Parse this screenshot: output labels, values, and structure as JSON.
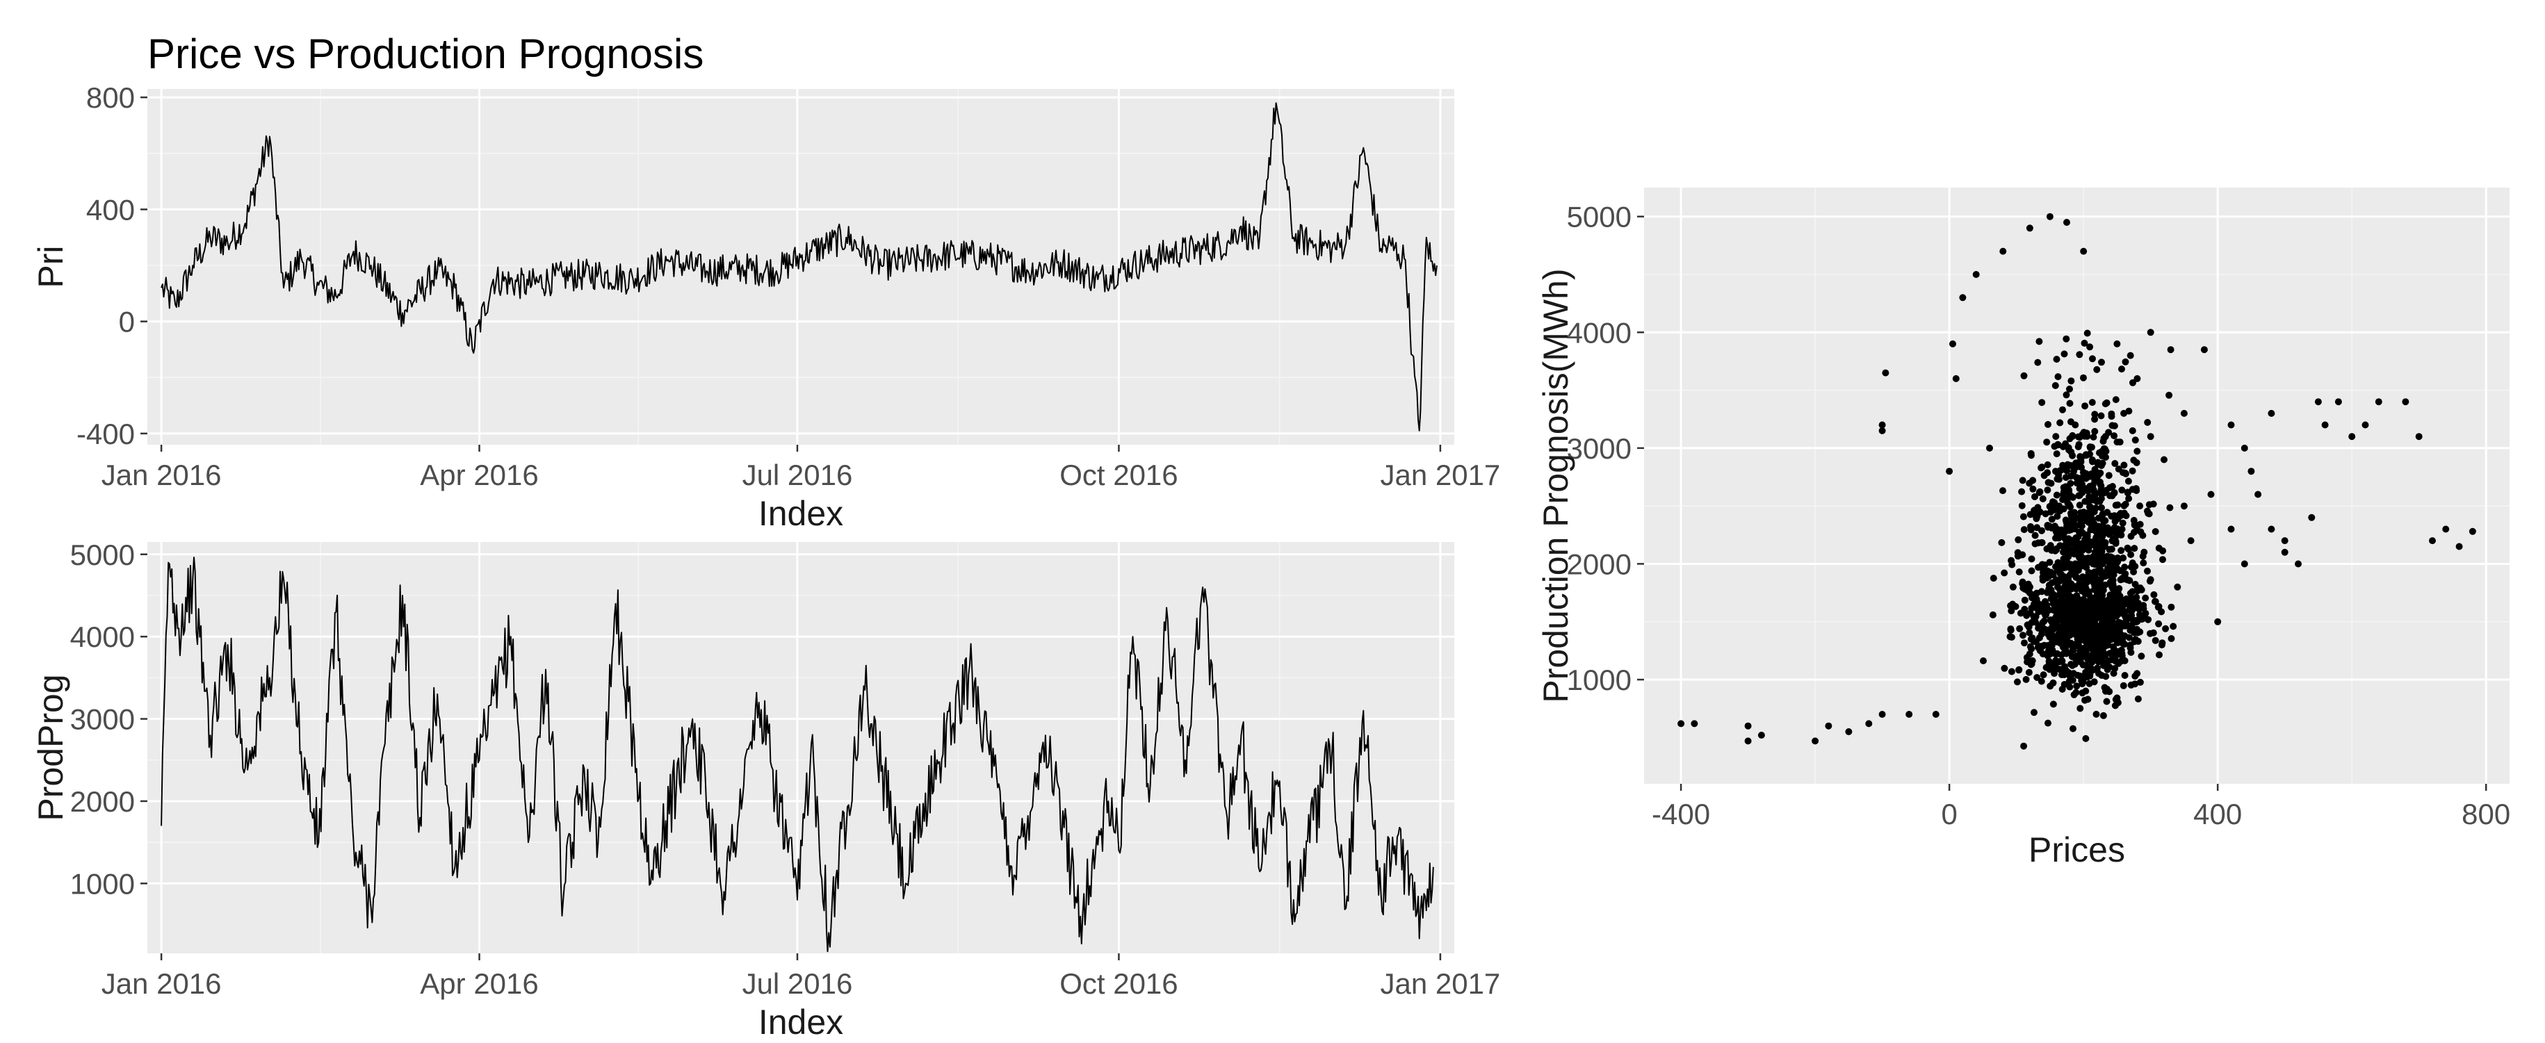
{
  "title": "Price vs Production Prognosis",
  "chart_data": [
    {
      "type": "line",
      "title": "Price vs Production Prognosis",
      "xlabel": "Index",
      "ylabel": "Pri",
      "x_ticks": [
        "Jan 2016",
        "Apr 2016",
        "Jul 2016",
        "Oct 2016",
        "Jan 2017"
      ],
      "y_ticks": [
        "-400",
        "0",
        "400",
        "800"
      ],
      "xlim": [
        "2015-12-28",
        "2017-01-05"
      ],
      "ylim": [
        -440,
        830
      ],
      "grid": true,
      "color": "#000000",
      "x": [
        "2016-01-01",
        "2016-01-05",
        "2016-01-10",
        "2016-01-15",
        "2016-01-20",
        "2016-01-25",
        "2016-02-01",
        "2016-02-05",
        "2016-02-10",
        "2016-02-15",
        "2016-02-20",
        "2016-02-25",
        "2016-03-01",
        "2016-03-10",
        "2016-03-20",
        "2016-03-25",
        "2016-03-30",
        "2016-04-05",
        "2016-04-15",
        "2016-04-25",
        "2016-05-05",
        "2016-05-15",
        "2016-05-25",
        "2016-06-05",
        "2016-06-15",
        "2016-06-25",
        "2016-07-05",
        "2016-07-15",
        "2016-07-25",
        "2016-08-05",
        "2016-08-15",
        "2016-08-25",
        "2016-09-05",
        "2016-09-15",
        "2016-09-25",
        "2016-10-05",
        "2016-10-15",
        "2016-10-25",
        "2016-11-01",
        "2016-11-05",
        "2016-11-10",
        "2016-11-15",
        "2016-11-20",
        "2016-11-25",
        "2016-12-01",
        "2016-12-05",
        "2016-12-10",
        "2016-12-15",
        "2016-12-18",
        "2016-12-20",
        "2016-12-22",
        "2016-12-24",
        "2016-12-26",
        "2016-12-28",
        "2016-12-30",
        "2016-12-31"
      ],
      "values": [
        120,
        60,
        200,
        300,
        280,
        350,
        660,
        120,
        230,
        130,
        90,
        250,
        200,
        30,
        180,
        120,
        -100,
        150,
        130,
        160,
        170,
        150,
        220,
        180,
        190,
        180,
        250,
        300,
        200,
        220,
        240,
        230,
        180,
        210,
        150,
        200,
        240,
        260,
        280,
        340,
        260,
        780,
        300,
        280,
        260,
        280,
        620,
        260,
        270,
        240,
        220,
        -120,
        -390,
        300,
        180,
        200
      ]
    },
    {
      "type": "line",
      "xlabel": "Index",
      "ylabel": "ProdProg",
      "x_ticks": [
        "Jan 2016",
        "Apr 2016",
        "Jul 2016",
        "Oct 2016",
        "Jan 2017"
      ],
      "y_ticks": [
        "1000",
        "2000",
        "3000",
        "4000",
        "5000"
      ],
      "xlim": [
        "2015-12-28",
        "2017-01-05"
      ],
      "ylim": [
        150,
        5150
      ],
      "grid": true,
      "color": "#000000",
      "x": [
        "2016-01-01",
        "2016-01-03",
        "2016-01-06",
        "2016-01-10",
        "2016-01-15",
        "2016-01-20",
        "2016-01-25",
        "2016-02-01",
        "2016-02-05",
        "2016-02-10",
        "2016-02-15",
        "2016-02-20",
        "2016-02-25",
        "2016-03-01",
        "2016-03-05",
        "2016-03-10",
        "2016-03-15",
        "2016-03-20",
        "2016-03-25",
        "2016-04-01",
        "2016-04-10",
        "2016-04-15",
        "2016-04-20",
        "2016-04-25",
        "2016-05-01",
        "2016-05-05",
        "2016-05-10",
        "2016-05-20",
        "2016-06-01",
        "2016-06-10",
        "2016-06-20",
        "2016-07-01",
        "2016-07-05",
        "2016-07-10",
        "2016-07-20",
        "2016-08-01",
        "2016-08-10",
        "2016-08-20",
        "2016-09-01",
        "2016-09-10",
        "2016-09-20",
        "2016-09-28",
        "2016-10-01",
        "2016-10-05",
        "2016-10-10",
        "2016-10-15",
        "2016-10-20",
        "2016-10-25",
        "2016-11-01",
        "2016-11-05",
        "2016-11-10",
        "2016-11-15",
        "2016-11-20",
        "2016-12-01",
        "2016-12-05",
        "2016-12-10",
        "2016-12-15",
        "2016-12-20",
        "2016-12-25",
        "2016-12-30"
      ],
      "values": [
        1700,
        4900,
        4100,
        4700,
        2800,
        3900,
        2400,
        3500,
        4700,
        2600,
        1500,
        4300,
        1500,
        700,
        2700,
        4500,
        1800,
        3300,
        1200,
        2500,
        4000,
        1500,
        3600,
        800,
        2400,
        1500,
        4400,
        1000,
        3000,
        900,
        3200,
        800,
        2700,
        400,
        3400,
        1000,
        2500,
        3600,
        1100,
        2800,
        600,
        2000,
        1400,
        4000,
        2200,
        4200,
        2500,
        4600,
        1800,
        2800,
        1200,
        2200,
        800,
        2600,
        700,
        3100,
        900,
        1600,
        600,
        1200
      ]
    },
    {
      "type": "scatter",
      "xlabel": "Prices",
      "ylabel": "Production Prognosis(MWh)",
      "x_ticks": [
        "-400",
        "0",
        "400",
        "800"
      ],
      "y_ticks": [
        "1000",
        "2000",
        "3000",
        "4000",
        "5000"
      ],
      "xlim": [
        -455,
        835
      ],
      "ylim": [
        100,
        5250
      ],
      "grid": true,
      "color": "#000000",
      "cluster": {
        "center": [
          200,
          1700
        ],
        "spread": [
          45,
          650
        ],
        "count": 1600
      },
      "points": [
        [
          -400,
          620
        ],
        [
          -380,
          620
        ],
        [
          -300,
          600
        ],
        [
          -300,
          470
        ],
        [
          -280,
          520
        ],
        [
          -200,
          470
        ],
        [
          -180,
          600
        ],
        [
          -150,
          550
        ],
        [
          -120,
          620
        ],
        [
          -100,
          700
        ],
        [
          -100,
          3200
        ],
        [
          -100,
          3150
        ],
        [
          -95,
          3650
        ],
        [
          -60,
          700
        ],
        [
          -20,
          700
        ],
        [
          0,
          2800
        ],
        [
          5,
          3900
        ],
        [
          10,
          3600
        ],
        [
          20,
          4300
        ],
        [
          40,
          4500
        ],
        [
          60,
          3000
        ],
        [
          80,
          4700
        ],
        [
          120,
          4900
        ],
        [
          150,
          5000
        ],
        [
          175,
          4950
        ],
        [
          200,
          4700
        ],
        [
          250,
          3900
        ],
        [
          300,
          4000
        ],
        [
          330,
          3850
        ],
        [
          350,
          3300
        ],
        [
          380,
          3850
        ],
        [
          420,
          3200
        ],
        [
          440,
          3000
        ],
        [
          460,
          2600
        ],
        [
          480,
          2300
        ],
        [
          500,
          2200
        ],
        [
          520,
          2000
        ],
        [
          550,
          3400
        ],
        [
          560,
          3200
        ],
        [
          580,
          3400
        ],
        [
          600,
          3100
        ],
        [
          620,
          3200
        ],
        [
          640,
          3400
        ],
        [
          680,
          3400
        ],
        [
          700,
          3100
        ],
        [
          720,
          2200
        ],
        [
          740,
          2300
        ],
        [
          760,
          2150
        ],
        [
          780,
          2280
        ],
        [
          440,
          2000
        ],
        [
          400,
          1500
        ],
        [
          350,
          2500
        ],
        [
          320,
          2900
        ],
        [
          280,
          3600
        ],
        [
          260,
          3300
        ],
        [
          450,
          2800
        ],
        [
          480,
          3300
        ],
        [
          500,
          2100
        ],
        [
          540,
          2400
        ],
        [
          420,
          2300
        ],
        [
          390,
          2600
        ],
        [
          360,
          2200
        ],
        [
          340,
          1800
        ],
        [
          300,
          3100
        ],
        [
          270,
          3800
        ]
      ]
    }
  ]
}
